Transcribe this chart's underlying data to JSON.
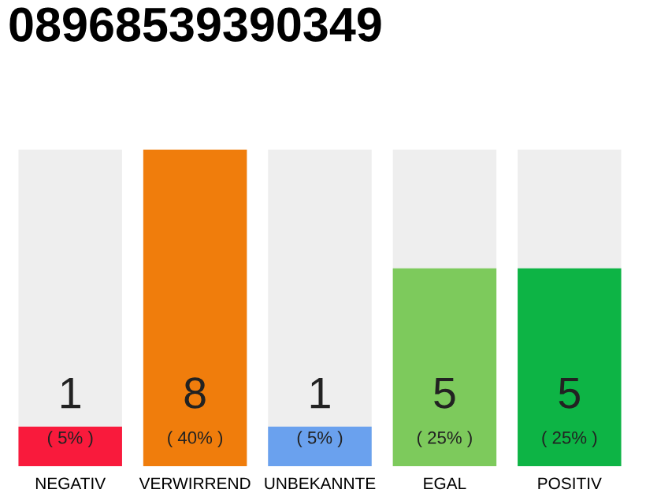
{
  "chart_data": {
    "type": "bar",
    "title": "08968539390349",
    "categories": [
      "NEGATIV",
      "VERWIRREND",
      "UNBEKANNTE",
      "EGAL",
      "POSITIV"
    ],
    "values": [
      1,
      8,
      1,
      5,
      5
    ],
    "colors": [
      "#f91a3c",
      "#f07d0c",
      "#6aa1ee",
      "#7dca5c",
      "#0db445"
    ],
    "data_labels": true,
    "annotations": [
      {
        "text": "( 5% )",
        "x": "NEGATIV",
        "y": 0
      },
      {
        "text": "( 40% )",
        "x": "VERWIRREND",
        "y": 0
      },
      {
        "text": "( 5% )",
        "x": "UNBEKANNTE",
        "y": 0
      },
      {
        "text": "( 25% )",
        "x": "EGAL",
        "y": 0
      },
      {
        "text": "( 25% )",
        "x": "POSITIV",
        "y": 0
      }
    ],
    "grid": false,
    "legend": false
  }
}
